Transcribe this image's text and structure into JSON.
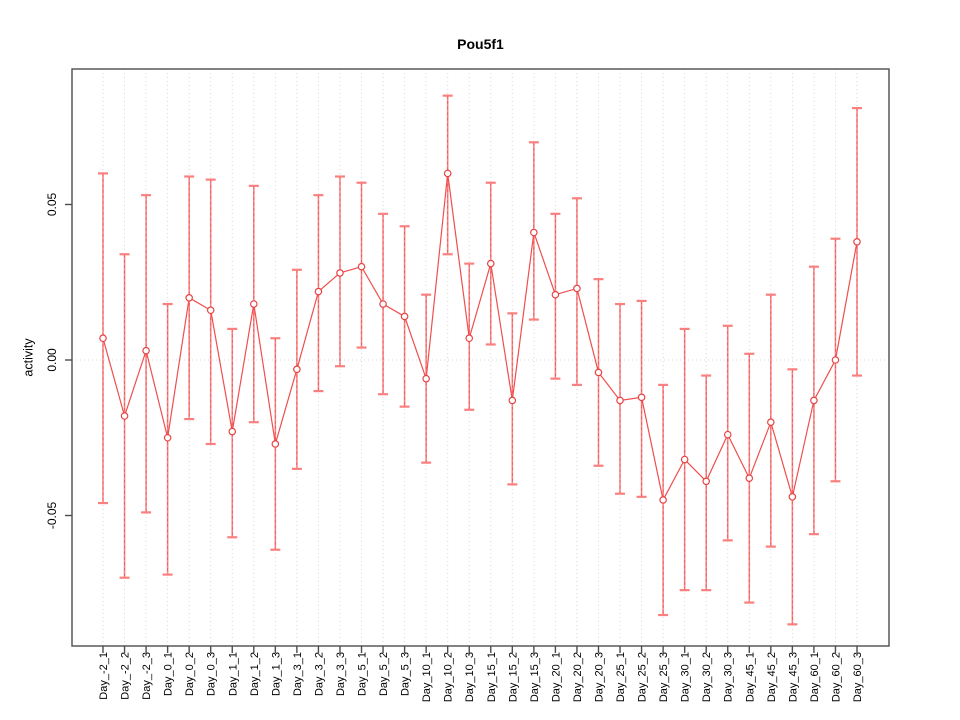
{
  "chart_data": {
    "type": "line",
    "title": "Pou5f1",
    "xlabel": "",
    "ylabel": "activity",
    "legend": "none",
    "grid": "vertical dotted gridline per category; dotted horizontal line at y=0",
    "ylim": [
      -0.092,
      0.093
    ],
    "yticks": [
      -0.05,
      0,
      0.05
    ],
    "ytick_labels": [
      "-0.05",
      "0.00",
      "0.05"
    ],
    "categories": [
      "Day_-2_1",
      "Day_-2_2",
      "Day_-2_3",
      "Day_0_1",
      "Day_0_2",
      "Day_0_3",
      "Day_1_1",
      "Day_1_2",
      "Day_1_3",
      "Day_3_1",
      "Day_3_2",
      "Day_3_3",
      "Day_5_1",
      "Day_5_2",
      "Day_5_3",
      "Day_10_1",
      "Day_10_2",
      "Day_10_3",
      "Day_15_1",
      "Day_15_2",
      "Day_15_3",
      "Day_20_1",
      "Day_20_2",
      "Day_20_3",
      "Day_25_1",
      "Day_25_2",
      "Day_25_3",
      "Day_30_1",
      "Day_30_2",
      "Day_30_3",
      "Day_45_1",
      "Day_45_2",
      "Day_45_3",
      "Day_60_1",
      "Day_60_2",
      "Day_60_3"
    ],
    "series": [
      {
        "name": "activity",
        "values": [
          0.007,
          -0.018,
          0.003,
          -0.025,
          0.02,
          0.016,
          -0.023,
          0.018,
          -0.027,
          -0.003,
          0.022,
          0.028,
          0.03,
          0.018,
          0.014,
          -0.006,
          0.06,
          0.007,
          0.031,
          -0.013,
          0.041,
          0.021,
          0.023,
          -0.004,
          -0.013,
          -0.012,
          -0.045,
          -0.032,
          -0.039,
          -0.024,
          -0.038,
          -0.02,
          -0.044,
          -0.013,
          0.0,
          0.038
        ],
        "upper": [
          0.06,
          0.034,
          0.053,
          0.018,
          0.059,
          0.058,
          0.01,
          0.056,
          0.007,
          0.029,
          0.053,
          0.059,
          0.057,
          0.047,
          0.043,
          0.021,
          0.085,
          0.031,
          0.057,
          0.015,
          0.07,
          0.047,
          0.052,
          0.026,
          0.018,
          0.019,
          -0.008,
          0.01,
          -0.005,
          0.011,
          0.002,
          0.021,
          -0.003,
          0.03,
          0.039,
          0.081
        ],
        "lower": [
          -0.046,
          -0.07,
          -0.049,
          -0.069,
          -0.019,
          -0.027,
          -0.057,
          -0.02,
          -0.061,
          -0.035,
          -0.01,
          -0.002,
          0.004,
          -0.011,
          -0.015,
          -0.033,
          0.034,
          -0.016,
          0.005,
          -0.04,
          0.013,
          -0.006,
          -0.008,
          -0.034,
          -0.043,
          -0.044,
          -0.082,
          -0.074,
          -0.074,
          -0.058,
          -0.078,
          -0.06,
          -0.085,
          -0.056,
          -0.039,
          -0.005
        ]
      }
    ],
    "colors": {
      "series_line": "#ef4e4e",
      "point_stroke": "#e84343",
      "point_fill": "#ffffff",
      "errorbar_line": "#f98686",
      "errorbar_dash_overlay": "#e85050",
      "errorbar_cap": "#f9807f",
      "gridline": "#d6d6d6",
      "zero_line": "#d9d9d9",
      "axis_box": "#4d4d4d",
      "tick_label": "#000000"
    }
  }
}
